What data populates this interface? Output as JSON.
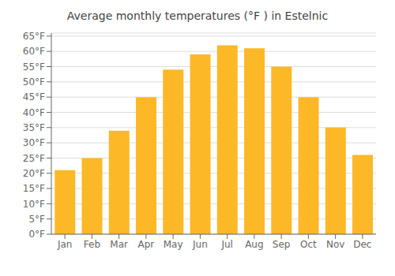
{
  "chart_data": {
    "type": "bar",
    "title": "Average monthly temperatures (°F ) in Estelnic",
    "categories": [
      "Jan",
      "Feb",
      "Mar",
      "Apr",
      "May",
      "Jun",
      "Jul",
      "Aug",
      "Sep",
      "Oct",
      "Nov",
      "Dec"
    ],
    "values": [
      21,
      25,
      34,
      45,
      54,
      59,
      62,
      61,
      55,
      45,
      35,
      26
    ],
    "color": "#FDB827",
    "ylim": [
      0,
      66
    ],
    "yticks": [
      {
        "value": 0,
        "label": "0°F"
      },
      {
        "value": 5,
        "label": "5°F"
      },
      {
        "value": 10,
        "label": "10°F"
      },
      {
        "value": 15,
        "label": "15°F"
      },
      {
        "value": 20,
        "label": "20°F"
      },
      {
        "value": 25,
        "label": "25°F"
      },
      {
        "value": 30,
        "label": "30°F"
      },
      {
        "value": 35,
        "label": "35°F"
      },
      {
        "value": 40,
        "label": "40°F"
      },
      {
        "value": 45,
        "label": "45°F"
      },
      {
        "value": 50,
        "label": "50°F"
      },
      {
        "value": 55,
        "label": "55°F"
      },
      {
        "value": 60,
        "label": "60°F"
      },
      {
        "value": 65,
        "label": "65°F"
      }
    ],
    "grid": true
  }
}
